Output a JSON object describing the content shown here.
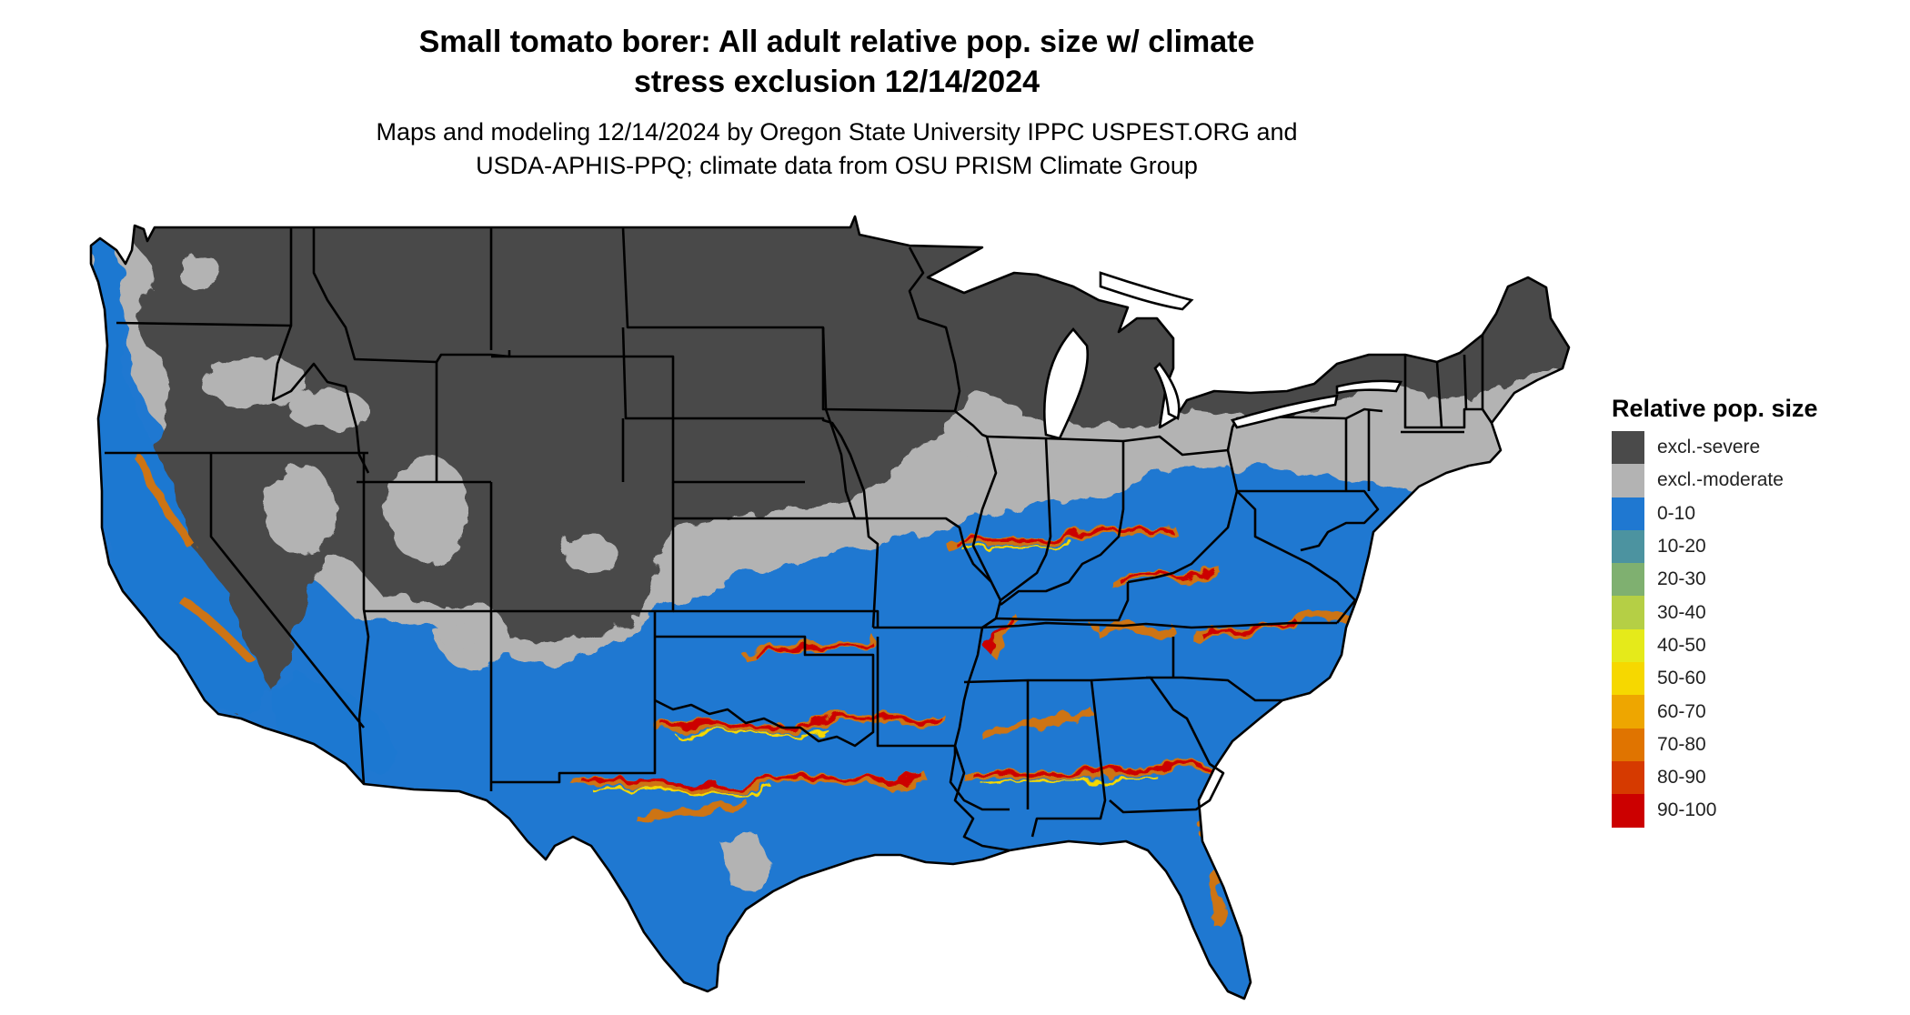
{
  "title": {
    "line1": "Small tomato borer: All adult relative pop. size w/ climate",
    "line2": "stress exclusion 12/14/2024"
  },
  "subtitle": {
    "line1": "Maps and modeling 12/14/2024 by Oregon State University IPPC USPEST.ORG and",
    "line2": "USDA-APHIS-PPQ; climate data from OSU PRISM Climate Group"
  },
  "legend": {
    "title": "Relative pop. size",
    "items": [
      {
        "label": "excl.-severe",
        "color": "#4a4a4a"
      },
      {
        "label": "excl.-moderate",
        "color": "#b3b3b3"
      },
      {
        "label": "0-10",
        "color": "#1f78d1"
      },
      {
        "label": "10-20",
        "color": "#4c93a0"
      },
      {
        "label": "20-30",
        "color": "#7fb070"
      },
      {
        "label": "30-40",
        "color": "#b5cf45"
      },
      {
        "label": "40-50",
        "color": "#e5ea1a"
      },
      {
        "label": "50-60",
        "color": "#f6d800"
      },
      {
        "label": "60-70",
        "color": "#eea600"
      },
      {
        "label": "70-80",
        "color": "#e07400"
      },
      {
        "label": "80-90",
        "color": "#d63a00"
      },
      {
        "label": "90-100",
        "color": "#cc0000"
      }
    ]
  }
}
